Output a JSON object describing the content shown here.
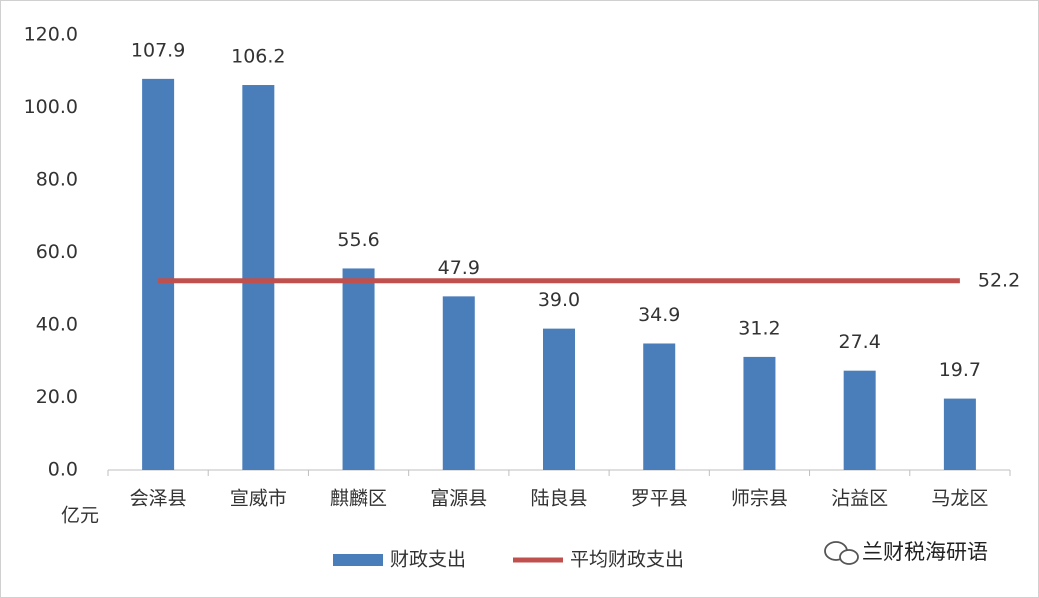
{
  "chart_data": {
    "type": "bar",
    "y_label": "亿元",
    "categories": [
      "会泽县",
      "宣威市",
      "麒麟区",
      "富源县",
      "陆良县",
      "罗平县",
      "师宗县",
      "沾益区",
      "马龙区"
    ],
    "series": [
      {
        "name": "财政支出",
        "color": "#4a7ebb",
        "type": "bar",
        "values": [
          107.9,
          106.2,
          55.6,
          47.9,
          39.0,
          34.9,
          31.2,
          27.4,
          19.7
        ],
        "value_labels": [
          "107.9",
          "106.2",
          "55.6",
          "47.9",
          "39.0",
          "34.9",
          "31.2",
          "27.4",
          "19.7"
        ]
      },
      {
        "name": "平均财政支出",
        "color": "#c0504d",
        "type": "line",
        "values": [
          52.2,
          52.2,
          52.2,
          52.2,
          52.2,
          52.2,
          52.2,
          52.2,
          52.2
        ]
      }
    ],
    "ylim": [
      0,
      120
    ],
    "yticks": [
      {
        "value": 0,
        "label": "0.0"
      },
      {
        "value": 20,
        "label": "20.0"
      },
      {
        "value": 40,
        "label": "40.0"
      },
      {
        "value": 60,
        "label": "60.0"
      },
      {
        "value": 80,
        "label": "80.0"
      },
      {
        "value": 100,
        "label": "100.0"
      },
      {
        "value": 120,
        "label": "120.0"
      }
    ],
    "grid": false,
    "legend": "bottom"
  },
  "watermark": "兰财税海研语"
}
